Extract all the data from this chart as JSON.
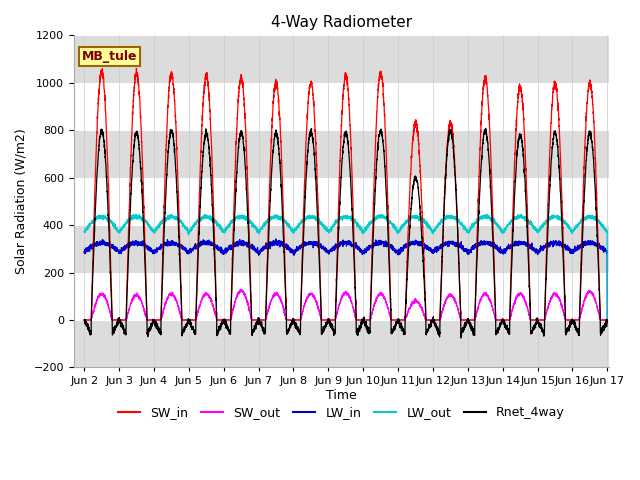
{
  "title": "4-Way Radiometer",
  "xlabel": "Time",
  "ylabel": "Solar Radiation (W/m2)",
  "ylim": [
    -200,
    1200
  ],
  "y_ticks": [
    -200,
    0,
    200,
    400,
    600,
    800,
    1000,
    1200
  ],
  "x_ticks_pos": [
    2,
    3,
    4,
    5,
    6,
    7,
    8,
    9,
    10,
    11,
    12,
    13,
    14,
    15,
    16,
    17
  ],
  "x_ticks_labels": [
    "Jun 2",
    "Jun 3",
    "Jun 4",
    "Jun 5",
    "Jun 6",
    "Jun 7",
    "Jun 8",
    "Jun 9",
    "Jun 10",
    "Jun 11",
    "Jun 12",
    "Jun 13",
    "Jun 14",
    "Jun 15",
    "Jun 16",
    "Jun 17"
  ],
  "colors": {
    "SW_in": "#ff0000",
    "SW_out": "#ff00ff",
    "LW_in": "#0000cc",
    "LW_out": "#00cccc",
    "Rnet_4way": "#000000"
  },
  "legend_label": "MB_tule",
  "legend_box_facecolor": "#ffff99",
  "legend_box_edgecolor": "#996600",
  "legend_text_color": "#800000",
  "fig_facecolor": "#ffffff",
  "plot_facecolor": "#ffffff",
  "gray_band_color": "#dcdcdc",
  "day_start": 2,
  "day_end": 17,
  "title_fontsize": 11,
  "axis_label_fontsize": 9,
  "tick_fontsize": 8,
  "legend_fontsize": 9,
  "SW_in_peaks": [
    1050,
    1040,
    1040,
    1030,
    1020,
    1000,
    1000,
    1030,
    1040,
    830,
    830,
    1020,
    980,
    1000,
    1000
  ],
  "SW_out_peaks": [
    110,
    105,
    110,
    110,
    125,
    110,
    110,
    115,
    110,
    80,
    105,
    110,
    110,
    110,
    120
  ],
  "LW_in_base": 285,
  "LW_in_bump": 40,
  "LW_out_base": 370,
  "LW_out_bump": 65,
  "Rnet_peaks": [
    800,
    790,
    800,
    790,
    790,
    790,
    795,
    790,
    800,
    600,
    800,
    800,
    780,
    790,
    790
  ],
  "Rnet_night_min": -110
}
